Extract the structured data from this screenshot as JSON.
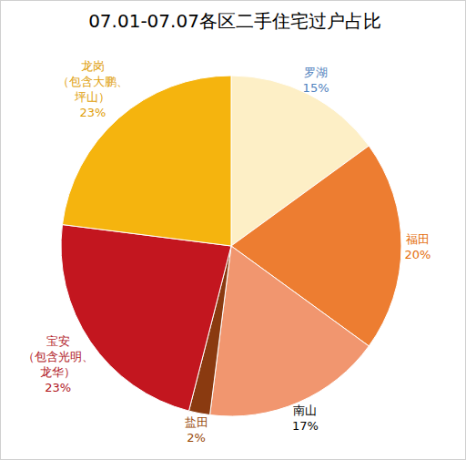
{
  "chart_data": {
    "type": "pie",
    "title": "07.01-07.07各区二手住宅过户占比",
    "categories": [
      "罗湖",
      "福田",
      "南山",
      "盐田",
      "宝安\n（包含光明、\n龙华）",
      "龙岗\n（包含大鹏、\n坪山）"
    ],
    "values": [
      15,
      20,
      17,
      2,
      23,
      23
    ],
    "value_labels": [
      "15%",
      "20%",
      "17%",
      "2%",
      "23%",
      "23%"
    ],
    "colors": [
      "#fdefc6",
      "#ed7d31",
      "#f1966f",
      "#8a3a10",
      "#c3161f",
      "#f5b40e"
    ],
    "data_labels": true
  }
}
